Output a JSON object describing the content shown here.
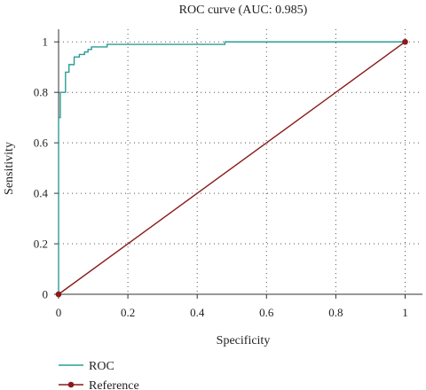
{
  "colors": {
    "roc": "#2a9d96",
    "reference": "#8b1a1a",
    "grid": "#555555",
    "axis": "#333333"
  },
  "chart_data": {
    "type": "line",
    "title": "ROC curve (AUC: 0.985)",
    "xlabel": "Specificity",
    "ylabel": "Sensitivity",
    "xlim": [
      0,
      1.05
    ],
    "ylim": [
      0,
      1.05
    ],
    "x_ticks": [
      {
        "value": 0,
        "label": "0"
      },
      {
        "value": 0.2,
        "label": "0.2"
      },
      {
        "value": 0.4,
        "label": "0.4"
      },
      {
        "value": 0.6,
        "label": "0.6"
      },
      {
        "value": 0.8,
        "label": "0.8"
      },
      {
        "value": 1,
        "label": "1"
      }
    ],
    "y_ticks": [
      {
        "value": 0,
        "label": "0"
      },
      {
        "value": 0.2,
        "label": "0.2"
      },
      {
        "value": 0.4,
        "label": "0.4"
      },
      {
        "value": 0.6,
        "label": "0.6"
      },
      {
        "value": 0.8,
        "label": "0.8"
      },
      {
        "value": 1,
        "label": "1"
      }
    ],
    "grid": true,
    "legend_position": "bottom-left",
    "series": [
      {
        "name": "ROC",
        "color": "#2a9d96",
        "marker": "none",
        "points": [
          [
            0,
            0
          ],
          [
            0,
            0.7
          ],
          [
            0.005,
            0.7
          ],
          [
            0.005,
            0.8
          ],
          [
            0.02,
            0.8
          ],
          [
            0.02,
            0.88
          ],
          [
            0.03,
            0.88
          ],
          [
            0.03,
            0.91
          ],
          [
            0.045,
            0.91
          ],
          [
            0.045,
            0.94
          ],
          [
            0.06,
            0.94
          ],
          [
            0.06,
            0.95
          ],
          [
            0.075,
            0.95
          ],
          [
            0.075,
            0.96
          ],
          [
            0.085,
            0.96
          ],
          [
            0.085,
            0.97
          ],
          [
            0.095,
            0.97
          ],
          [
            0.095,
            0.98
          ],
          [
            0.14,
            0.98
          ],
          [
            0.14,
            0.99
          ],
          [
            0.48,
            0.99
          ],
          [
            0.48,
            1.0
          ],
          [
            1.0,
            1.0
          ]
        ]
      },
      {
        "name": "Reference",
        "color": "#8b1a1a",
        "marker": "dot",
        "points": [
          [
            0,
            0
          ],
          [
            1,
            1
          ]
        ]
      }
    ]
  }
}
